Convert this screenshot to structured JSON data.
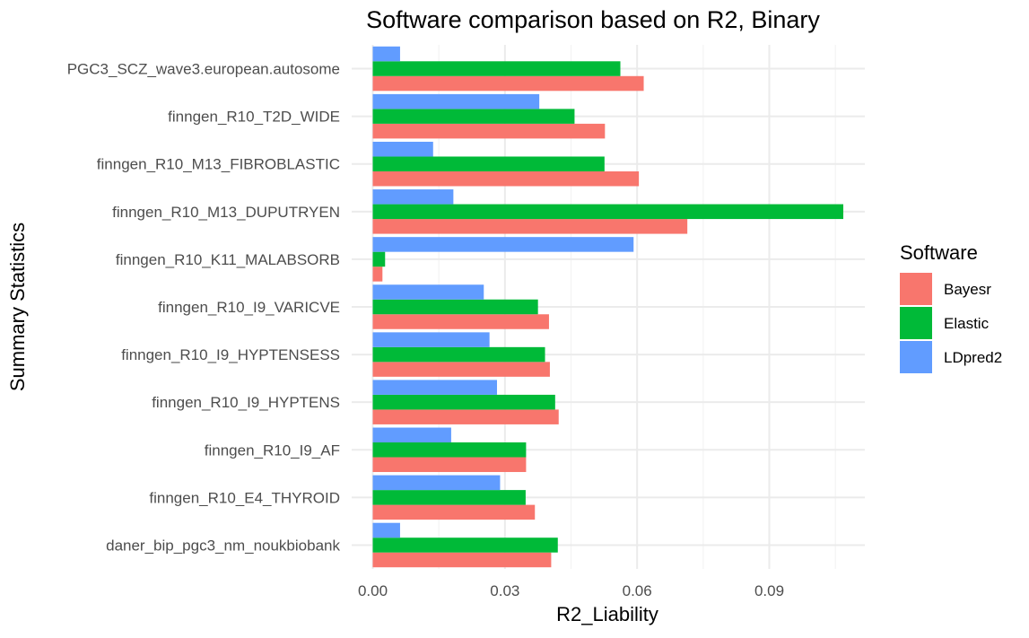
{
  "chart_data": {
    "type": "bar",
    "orientation": "horizontal",
    "title": "Software comparison based on R2, Binary",
    "xlabel": "R2_Liability",
    "ylabel": "Summary Statistics",
    "xlim": [
      0,
      0.1125
    ],
    "xticks": [
      0.0,
      0.03,
      0.06,
      0.09
    ],
    "xtick_labels": [
      "0.00",
      "0.03",
      "0.06",
      "0.09"
    ],
    "grid": true,
    "legend_title": "Software",
    "legend_position": "right",
    "categories": [
      "daner_bip_pgc3_nm_noukbiobank",
      "finngen_R10_E4_THYROID",
      "finngen_R10_I9_AF",
      "finngen_R10_I9_HYPTENS",
      "finngen_R10_I9_HYPTENSESS",
      "finngen_R10_I9_VARICVE",
      "finngen_R10_K11_MALABSORB",
      "finngen_R10_M13_DUPUTRYEN",
      "finngen_R10_M13_FIBROBLASTIC",
      "finngen_R10_T2D_WIDE",
      "PGC3_SCZ_wave3.european.autosome"
    ],
    "series": [
      {
        "name": "Bayesr",
        "color": "#F8766D",
        "values": [
          0.0405,
          0.0368,
          0.0348,
          0.0422,
          0.0402,
          0.04,
          0.0022,
          0.0714,
          0.0604,
          0.0527,
          0.0615
        ]
      },
      {
        "name": "Elastic",
        "color": "#00BA38",
        "values": [
          0.042,
          0.0347,
          0.0348,
          0.0414,
          0.0391,
          0.0375,
          0.0028,
          0.1068,
          0.0526,
          0.0458,
          0.0562
        ]
      },
      {
        "name": "LDpred2",
        "color": "#619CFF",
        "values": [
          0.0062,
          0.0289,
          0.0178,
          0.0282,
          0.0265,
          0.0252,
          0.0592,
          0.0183,
          0.0137,
          0.0378,
          0.0062
        ]
      }
    ]
  }
}
